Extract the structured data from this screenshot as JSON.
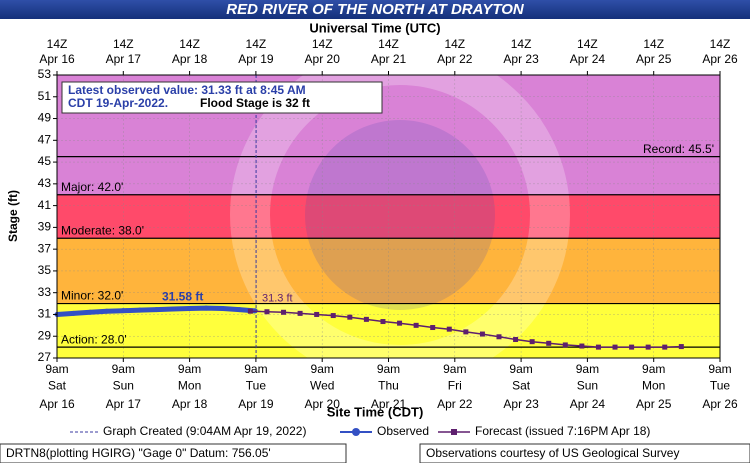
{
  "chart_data": {
    "type": "hydrograph",
    "title": "RED RIVER OF THE NORTH AT DRAYTON",
    "x2_label": "Universal Time (UTC)",
    "x_label": "Site Time (CDT)",
    "y_label": "Stage (ft)",
    "xlim": [
      "2022-04-16T09:00",
      "2022-04-26T09:00"
    ],
    "ylim": [
      27,
      53
    ],
    "yticks": [
      27,
      29,
      31,
      33,
      35,
      37,
      39,
      41,
      43,
      45,
      47,
      49,
      51,
      53
    ],
    "grid": true,
    "xticks": [
      {
        "value": "2022-04-16T09:00",
        "label": [
          "9am",
          "Sat",
          "Apr 16"
        ]
      },
      {
        "value": "2022-04-17T09:00",
        "label": [
          "9am",
          "Sun",
          "Apr 17"
        ]
      },
      {
        "value": "2022-04-18T09:00",
        "label": [
          "9am",
          "Mon",
          "Apr 18"
        ]
      },
      {
        "value": "2022-04-19T09:00",
        "label": [
          "9am",
          "Tue",
          "Apr 19"
        ]
      },
      {
        "value": "2022-04-20T09:00",
        "label": [
          "9am",
          "Wed",
          "Apr 20"
        ]
      },
      {
        "value": "2022-04-21T09:00",
        "label": [
          "9am",
          "Thu",
          "Apr 21"
        ]
      },
      {
        "value": "2022-04-22T09:00",
        "label": [
          "9am",
          "Fri",
          "Apr 22"
        ]
      },
      {
        "value": "2022-04-23T09:00",
        "label": [
          "9am",
          "Sat",
          "Apr 23"
        ]
      },
      {
        "value": "2022-04-24T09:00",
        "label": [
          "9am",
          "Sun",
          "Apr 24"
        ]
      },
      {
        "value": "2022-04-25T09:00",
        "label": [
          "9am",
          "Mon",
          "Apr 25"
        ]
      },
      {
        "value": "2022-04-26T09:00",
        "label": [
          "9am",
          "Tue",
          "Apr 26"
        ]
      }
    ],
    "x2ticks": [
      {
        "value": "2022-04-16T09:00",
        "label": [
          "14Z",
          "Apr 16"
        ]
      },
      {
        "value": "2022-04-17T09:00",
        "label": [
          "14Z",
          "Apr 17"
        ]
      },
      {
        "value": "2022-04-18T09:00",
        "label": [
          "14Z",
          "Apr 18"
        ]
      },
      {
        "value": "2022-04-19T09:00",
        "label": [
          "14Z",
          "Apr 19"
        ]
      },
      {
        "value": "2022-04-20T09:00",
        "label": [
          "14Z",
          "Apr 20"
        ]
      },
      {
        "value": "2022-04-21T09:00",
        "label": [
          "14Z",
          "Apr 21"
        ]
      },
      {
        "value": "2022-04-22T09:00",
        "label": [
          "14Z",
          "Apr 22"
        ]
      },
      {
        "value": "2022-04-23T09:00",
        "label": [
          "14Z",
          "Apr 23"
        ]
      },
      {
        "value": "2022-04-24T09:00",
        "label": [
          "14Z",
          "Apr 24"
        ]
      },
      {
        "value": "2022-04-25T09:00",
        "label": [
          "14Z",
          "Apr 25"
        ]
      },
      {
        "value": "2022-04-26T09:00",
        "label": [
          "14Z",
          "Apr 26"
        ]
      }
    ],
    "base_color": "#ffff3c",
    "thresholds": [
      {
        "label": "Action: 28.0'",
        "value": 28,
        "color": "#ffff3c"
      },
      {
        "label": "Minor: 32.0'",
        "value": 32,
        "color": "#ffb43c"
      },
      {
        "label": "Moderate: 38.0'",
        "value": 38,
        "color": "#ff4a6a"
      },
      {
        "label": "Major: 42.0'",
        "value": 42,
        "color": "#d982d6"
      },
      {
        "label": "Record: 45.5'",
        "value": 45.5,
        "color": "#d982d6"
      }
    ],
    "created": {
      "x": "2022-04-19T09:04",
      "label": "Graph Created (9:04AM Apr 19, 2022)"
    },
    "series": [
      {
        "name": "Observed",
        "color": "#3350c4",
        "x": [
          "2022-04-16T09:00",
          "2022-04-16T15:00",
          "2022-04-16T21:00",
          "2022-04-17T03:00",
          "2022-04-17T09:00",
          "2022-04-17T15:00",
          "2022-04-17T21:00",
          "2022-04-18T03:00",
          "2022-04-18T09:00",
          "2022-04-18T15:00",
          "2022-04-18T21:00",
          "2022-04-19T03:00",
          "2022-04-19T08:45"
        ],
        "values": [
          31.0,
          31.1,
          31.2,
          31.3,
          31.35,
          31.4,
          31.45,
          31.5,
          31.55,
          31.58,
          31.55,
          31.45,
          31.33
        ]
      },
      {
        "name": "Forecast (issued 7:16PM Apr 18)",
        "color": "#5e1f6e",
        "x": [
          "2022-04-19T07:00",
          "2022-04-19T13:00",
          "2022-04-19T19:00",
          "2022-04-20T01:00",
          "2022-04-20T07:00",
          "2022-04-20T13:00",
          "2022-04-20T19:00",
          "2022-04-21T01:00",
          "2022-04-21T07:00",
          "2022-04-21T13:00",
          "2022-04-21T19:00",
          "2022-04-22T01:00",
          "2022-04-22T07:00",
          "2022-04-22T13:00",
          "2022-04-22T19:00",
          "2022-04-23T01:00",
          "2022-04-23T07:00",
          "2022-04-23T13:00",
          "2022-04-23T19:00",
          "2022-04-24T01:00",
          "2022-04-24T07:00",
          "2022-04-24T13:00",
          "2022-04-24T19:00",
          "2022-04-25T01:00",
          "2022-04-25T07:00",
          "2022-04-25T13:00",
          "2022-04-25T19:00"
        ],
        "values": [
          31.3,
          31.25,
          31.2,
          31.1,
          31.0,
          30.9,
          30.75,
          30.55,
          30.35,
          30.2,
          30.0,
          29.8,
          29.65,
          29.4,
          29.2,
          28.95,
          28.7,
          28.5,
          28.35,
          28.2,
          28.1,
          28.0,
          28.0,
          28.0,
          28.0,
          28.0,
          28.05
        ]
      }
    ],
    "annotations": {
      "latest": [
        "Latest observed value: 31.33 ft at 8:45 AM",
        "CDT 19-Apr-2022.",
        "Flood Stage is 32 ft"
      ],
      "observed_peak": "31.58 ft",
      "forecast_start": "31.3 ft"
    },
    "footer": {
      "left": "DRTN8(plotting HGIRG) \"Gage 0\" Datum: 756.05'",
      "right": "Observations courtesy of US Geological Survey"
    }
  }
}
